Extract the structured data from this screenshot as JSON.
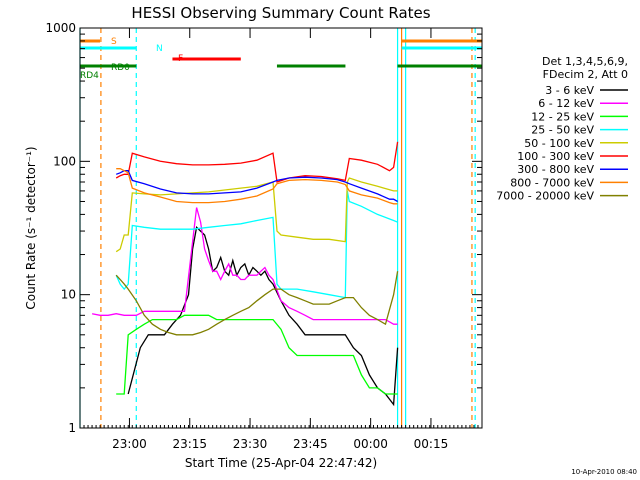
{
  "chart_data": {
    "type": "line",
    "title": "HESSI Observing Summary Count Rates",
    "ylabel": "Count Rate (s⁻¹ detector⁻¹)",
    "xlabel": "Start Time (25-Apr-04 22:47:42)",
    "footer_timestamp": "10-Apr-2010 08:40",
    "y_scale": "log",
    "ylim": [
      1,
      1000
    ],
    "xlim_minutes": [
      0,
      100
    ],
    "x_tick_labels": [
      {
        "minute": 12.3,
        "label": "23:00"
      },
      {
        "minute": 27.3,
        "label": "23:15"
      },
      {
        "minute": 42.3,
        "label": "23:30"
      },
      {
        "minute": 57.3,
        "label": "23:45"
      },
      {
        "minute": 72.3,
        "label": "00:00"
      },
      {
        "minute": 87.3,
        "label": "00:15"
      }
    ],
    "y_tick_labels": [
      {
        "value": 1,
        "label": "1"
      },
      {
        "value": 10,
        "label": "10"
      },
      {
        "value": 100,
        "label": "100"
      },
      {
        "value": 1000,
        "label": "1000"
      }
    ],
    "legend_header": [
      "Det 1,3,4,5,6,9,",
      "FDecim 2, Att 0"
    ],
    "legend_position": "right",
    "series": [
      {
        "name": "3 - 6 keV",
        "color": "#000000",
        "x": [
          12,
          15,
          17,
          19,
          21,
          23,
          25,
          27,
          28,
          29,
          30,
          31,
          32,
          33,
          34,
          35,
          36,
          37,
          38,
          39,
          40,
          41,
          42,
          43,
          44,
          45,
          46,
          47,
          48,
          50,
          52,
          54,
          56,
          58,
          60,
          62,
          64,
          66,
          68,
          70,
          72,
          74,
          76,
          78,
          79
        ],
        "y": [
          1.8,
          4,
          5,
          5,
          5,
          6,
          7,
          10,
          22,
          32,
          30,
          28,
          22,
          15,
          16,
          19,
          15,
          14,
          18,
          14,
          16,
          17,
          14,
          16,
          15,
          14,
          15,
          13,
          12,
          9,
          7,
          6,
          5,
          5,
          5,
          5,
          5,
          5,
          4,
          3.5,
          2.5,
          2,
          1.8,
          1.5,
          4
        ]
      },
      {
        "name": "6 - 12 keV",
        "color": "#ff00ff",
        "x": [
          3,
          5,
          7,
          9,
          11,
          12,
          14,
          16,
          18,
          20,
          22,
          24,
          26,
          28,
          29,
          30,
          31,
          32,
          33,
          34,
          35,
          36,
          37,
          38,
          39,
          40,
          41,
          42,
          43,
          44,
          45,
          46,
          47,
          48,
          50,
          52,
          54,
          56,
          58,
          60,
          62,
          64,
          66,
          68,
          70,
          72,
          74,
          76,
          78,
          79
        ],
        "y": [
          7.2,
          7,
          7,
          7.2,
          7,
          7,
          7,
          7.5,
          7.5,
          7.5,
          7.5,
          7.5,
          7.5,
          25,
          45,
          35,
          22,
          18,
          15,
          15,
          13,
          15,
          17,
          14,
          14,
          13,
          13,
          14,
          14,
          14,
          15,
          16,
          14,
          13,
          9,
          8,
          7.5,
          7,
          6.5,
          6.5,
          6.5,
          6.5,
          6.5,
          6.5,
          6.5,
          6.5,
          6.5,
          6.5,
          6,
          6
        ]
      },
      {
        "name": "12 - 25 keV",
        "color": "#00ff00",
        "x": [
          9,
          10,
          11,
          12,
          14,
          16,
          18,
          20,
          22,
          24,
          26,
          28,
          30,
          32,
          34,
          36,
          38,
          40,
          42,
          44,
          46,
          48,
          50,
          52,
          54,
          56,
          58,
          60,
          62,
          64,
          66,
          68,
          70,
          72,
          74,
          76,
          78,
          79
        ],
        "y": [
          1.8,
          1.8,
          1.8,
          5,
          5.5,
          6,
          6.5,
          6.5,
          6.5,
          6.5,
          7,
          7,
          7,
          7,
          6.5,
          6.5,
          6.5,
          6.5,
          6.5,
          6.5,
          6.5,
          6.5,
          5.5,
          4,
          3.5,
          3.5,
          3.5,
          3.5,
          3.5,
          3.5,
          3.5,
          3.5,
          2.5,
          2,
          2,
          1.8,
          1.8,
          1.8
        ]
      },
      {
        "name": "25 - 50 keV",
        "color": "#00ffff",
        "x": [
          9,
          10,
          11,
          12,
          13,
          16,
          20,
          24,
          28,
          32,
          36,
          40,
          44,
          48,
          49,
          50,
          54,
          58,
          62,
          66,
          66.5,
          67,
          70,
          74,
          78,
          79
        ],
        "y": [
          14,
          12,
          11,
          12,
          33,
          32,
          31,
          31,
          31,
          32,
          33,
          34,
          36,
          38,
          12,
          11,
          11,
          10.5,
          10,
          9.5,
          60,
          50,
          46,
          40,
          36,
          35
        ]
      },
      {
        "name": "50 - 100 keV",
        "color": "#cccc00",
        "x": [
          9,
          10,
          11,
          12,
          13,
          16,
          20,
          24,
          28,
          32,
          36,
          40,
          44,
          48,
          49,
          50,
          54,
          58,
          62,
          66,
          66.5,
          67,
          70,
          74,
          78,
          79
        ],
        "y": [
          21,
          22,
          28,
          28,
          58,
          57,
          56,
          57,
          58,
          59,
          61,
          63,
          65,
          70,
          30,
          28,
          27,
          26,
          26,
          25,
          70,
          75,
          70,
          65,
          60,
          60
        ]
      },
      {
        "name": "100 - 300 keV",
        "color": "#ff0000",
        "x": [
          9,
          10,
          11,
          12,
          13,
          16,
          20,
          24,
          28,
          32,
          36,
          40,
          44,
          48,
          49,
          52,
          56,
          60,
          64,
          66,
          67,
          70,
          74,
          77,
          78,
          79
        ],
        "y": [
          75,
          78,
          80,
          80,
          115,
          108,
          100,
          96,
          94,
          94,
          95,
          97,
          102,
          115,
          70,
          75,
          78,
          77,
          74,
          72,
          105,
          102,
          95,
          85,
          90,
          140
        ]
      },
      {
        "name": "300 - 800 keV",
        "color": "#0000ff",
        "x": [
          9,
          10,
          11,
          12,
          13,
          16,
          20,
          24,
          28,
          32,
          36,
          40,
          44,
          48,
          49,
          52,
          56,
          60,
          64,
          66,
          67,
          70,
          74,
          77,
          78,
          79
        ],
        "y": [
          80,
          82,
          85,
          85,
          72,
          68,
          62,
          58,
          57,
          57,
          58,
          59,
          63,
          70,
          72,
          75,
          76,
          75,
          73,
          70,
          68,
          63,
          57,
          52,
          52,
          50
        ]
      },
      {
        "name": "800 - 7000 keV",
        "color": "#ff8000",
        "x": [
          9,
          10,
          11,
          12,
          13,
          16,
          20,
          24,
          28,
          32,
          36,
          40,
          44,
          48,
          49,
          52,
          56,
          60,
          64,
          66,
          67,
          70,
          74,
          77,
          78,
          79
        ],
        "y": [
          88,
          88,
          85,
          82,
          63,
          58,
          54,
          50,
          49,
          49,
          50,
          52,
          55,
          62,
          68,
          72,
          73,
          72,
          70,
          67,
          60,
          56,
          53,
          49,
          48,
          48
        ]
      },
      {
        "name": "7000 - 20000 keV",
        "color": "#808000",
        "x": [
          9,
          10,
          11,
          12,
          14,
          16,
          18,
          20,
          22,
          24,
          26,
          28,
          30,
          32,
          34,
          36,
          38,
          40,
          42,
          44,
          46,
          48,
          50,
          52,
          54,
          56,
          58,
          60,
          62,
          64,
          66,
          68,
          70,
          72,
          74,
          76,
          78,
          79
        ],
        "y": [
          14,
          13,
          12,
          11,
          9,
          7,
          6,
          5.5,
          5.2,
          5,
          5,
          5,
          5.2,
          5.5,
          6,
          6.5,
          7,
          7.5,
          8,
          9,
          10,
          11,
          11,
          10,
          9.5,
          9,
          8.5,
          8.5,
          8.5,
          9,
          9.5,
          9.5,
          8,
          7,
          6.5,
          6,
          10,
          15
        ]
      }
    ],
    "flags": [
      {
        "label": "S",
        "color": "#ff8000",
        "segments": [
          [
            0,
            5
          ],
          [
            80,
            100
          ]
        ]
      },
      {
        "label": "N",
        "color": "#00ffff",
        "segments": [
          [
            0,
            14
          ],
          [
            80,
            100
          ]
        ]
      },
      {
        "label": "F",
        "color": "#ff0000",
        "segments": [
          [
            23,
            40
          ]
        ]
      },
      {
        "label": "RD0",
        "color": "#008000",
        "segments": [
          [
            0,
            14
          ],
          [
            49,
            66
          ],
          [
            79,
            100
          ]
        ]
      },
      {
        "label": "RD4",
        "color": "#008000",
        "segments": [
          [
            0,
            14
          ],
          [
            49,
            66
          ],
          [
            79,
            100
          ]
        ]
      }
    ],
    "vertical_markers": [
      {
        "minute": 0,
        "color": "#00ffff",
        "style": "solid"
      },
      {
        "minute": 5.2,
        "color": "#ff8000",
        "style": "dashed"
      },
      {
        "minute": 14,
        "color": "#00ffff",
        "style": "dashed"
      },
      {
        "minute": 79,
        "color": "#00ffff",
        "style": "solid"
      },
      {
        "minute": 80,
        "color": "#ff8000",
        "style": "solid"
      },
      {
        "minute": 81,
        "color": "#00ffff",
        "style": "solid"
      },
      {
        "minute": 97.5,
        "color": "#ff8000",
        "style": "dashed"
      },
      {
        "minute": 98.3,
        "color": "#00ffff",
        "style": "dashed"
      }
    ],
    "grid": false
  }
}
